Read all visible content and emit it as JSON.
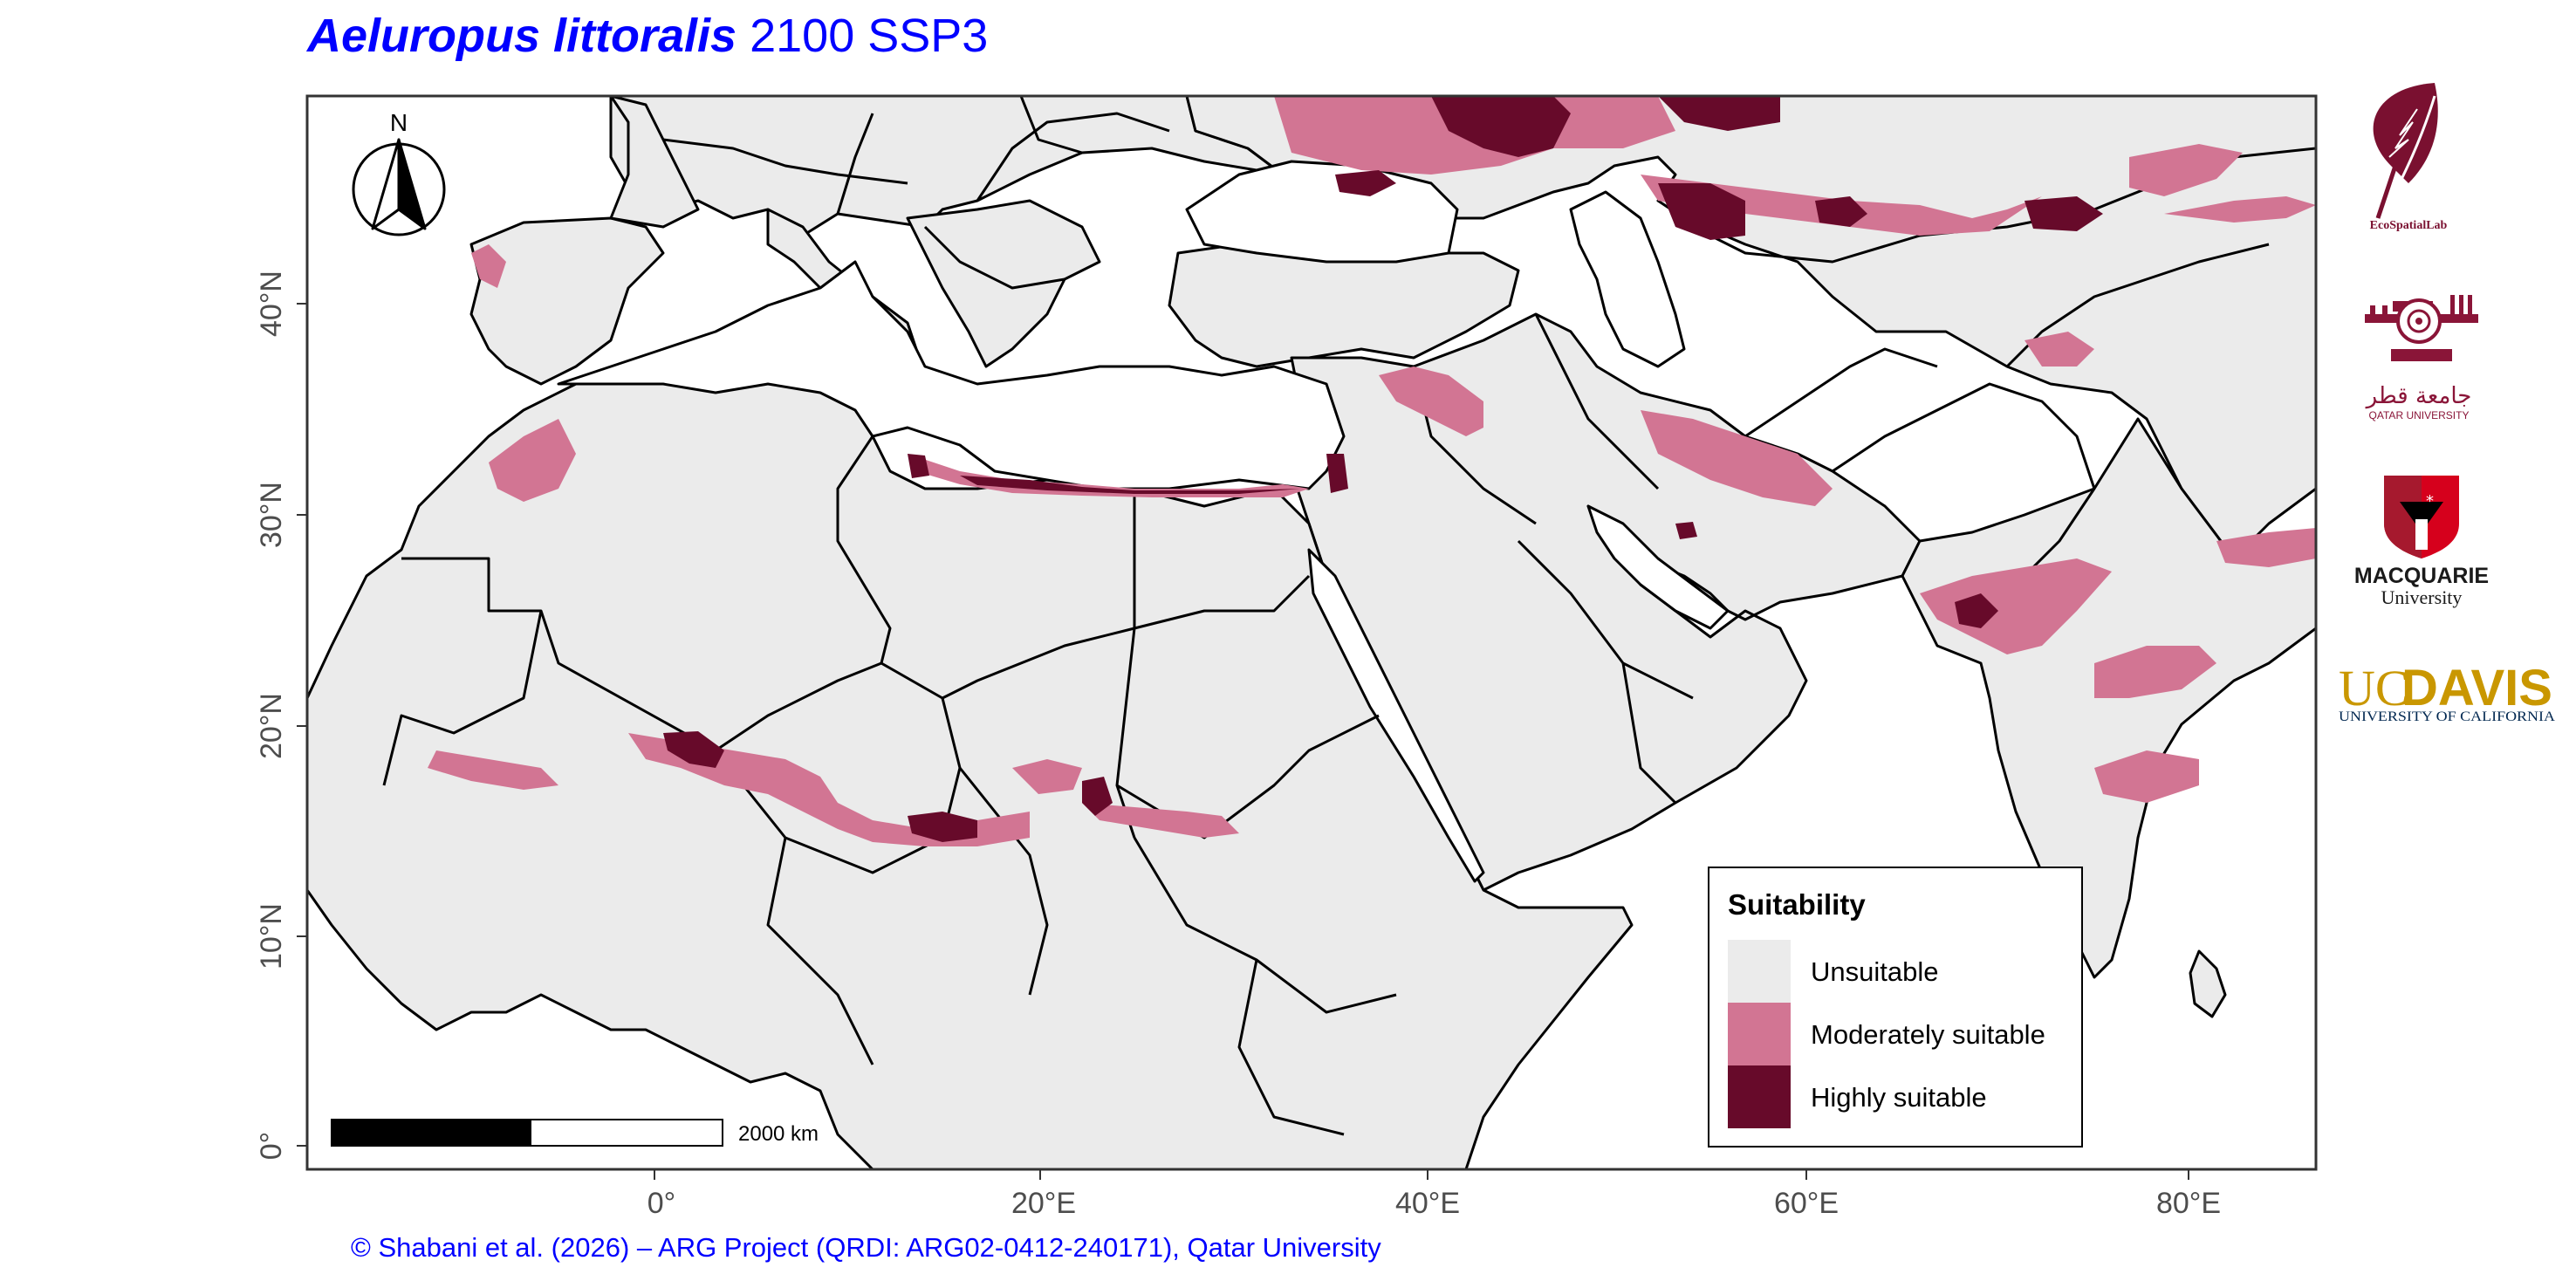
{
  "title": {
    "species": "Aeluropus littoralis",
    "scenario": "2100 SSP3"
  },
  "map": {
    "north_arrow_label": "N",
    "scale_bar_label": "2000 km",
    "lat_labels": [
      "40°N",
      "30°N",
      "20°N",
      "10°N",
      "0°"
    ],
    "lon_labels": [
      "0°",
      "20°E",
      "40°E",
      "60°E",
      "80°E"
    ]
  },
  "legend": {
    "title": "Suitability",
    "items": [
      {
        "label": "Unsuitable",
        "color": "#ebebeb"
      },
      {
        "label": "Moderately suitable",
        "color": "#d27593"
      },
      {
        "label": "Highly suitable",
        "color": "#670a2a"
      }
    ]
  },
  "colors": {
    "land": "#ebebeb",
    "sea": "#ffffff",
    "moderate": "#d27593",
    "high": "#670a2a",
    "border": "#000000"
  },
  "logos": [
    {
      "name": "EcoSpatialLab",
      "text": "EcoSpatialLab"
    },
    {
      "name": "Qatar University",
      "text_ar": "جامعة قطر",
      "text": "QATAR UNIVERSITY"
    },
    {
      "name": "Macquarie University",
      "text": "MACQUARIE",
      "subtext": "University"
    },
    {
      "name": "UC Davis",
      "text_uc": "UC",
      "text_davis": "DAVIS",
      "subtext": "UNIVERSITY OF CALIFORNIA"
    }
  ],
  "credit": "© Shabani et al. (2026) – ARG Project (QRDI: ARG02-0412-240171), Qatar University"
}
